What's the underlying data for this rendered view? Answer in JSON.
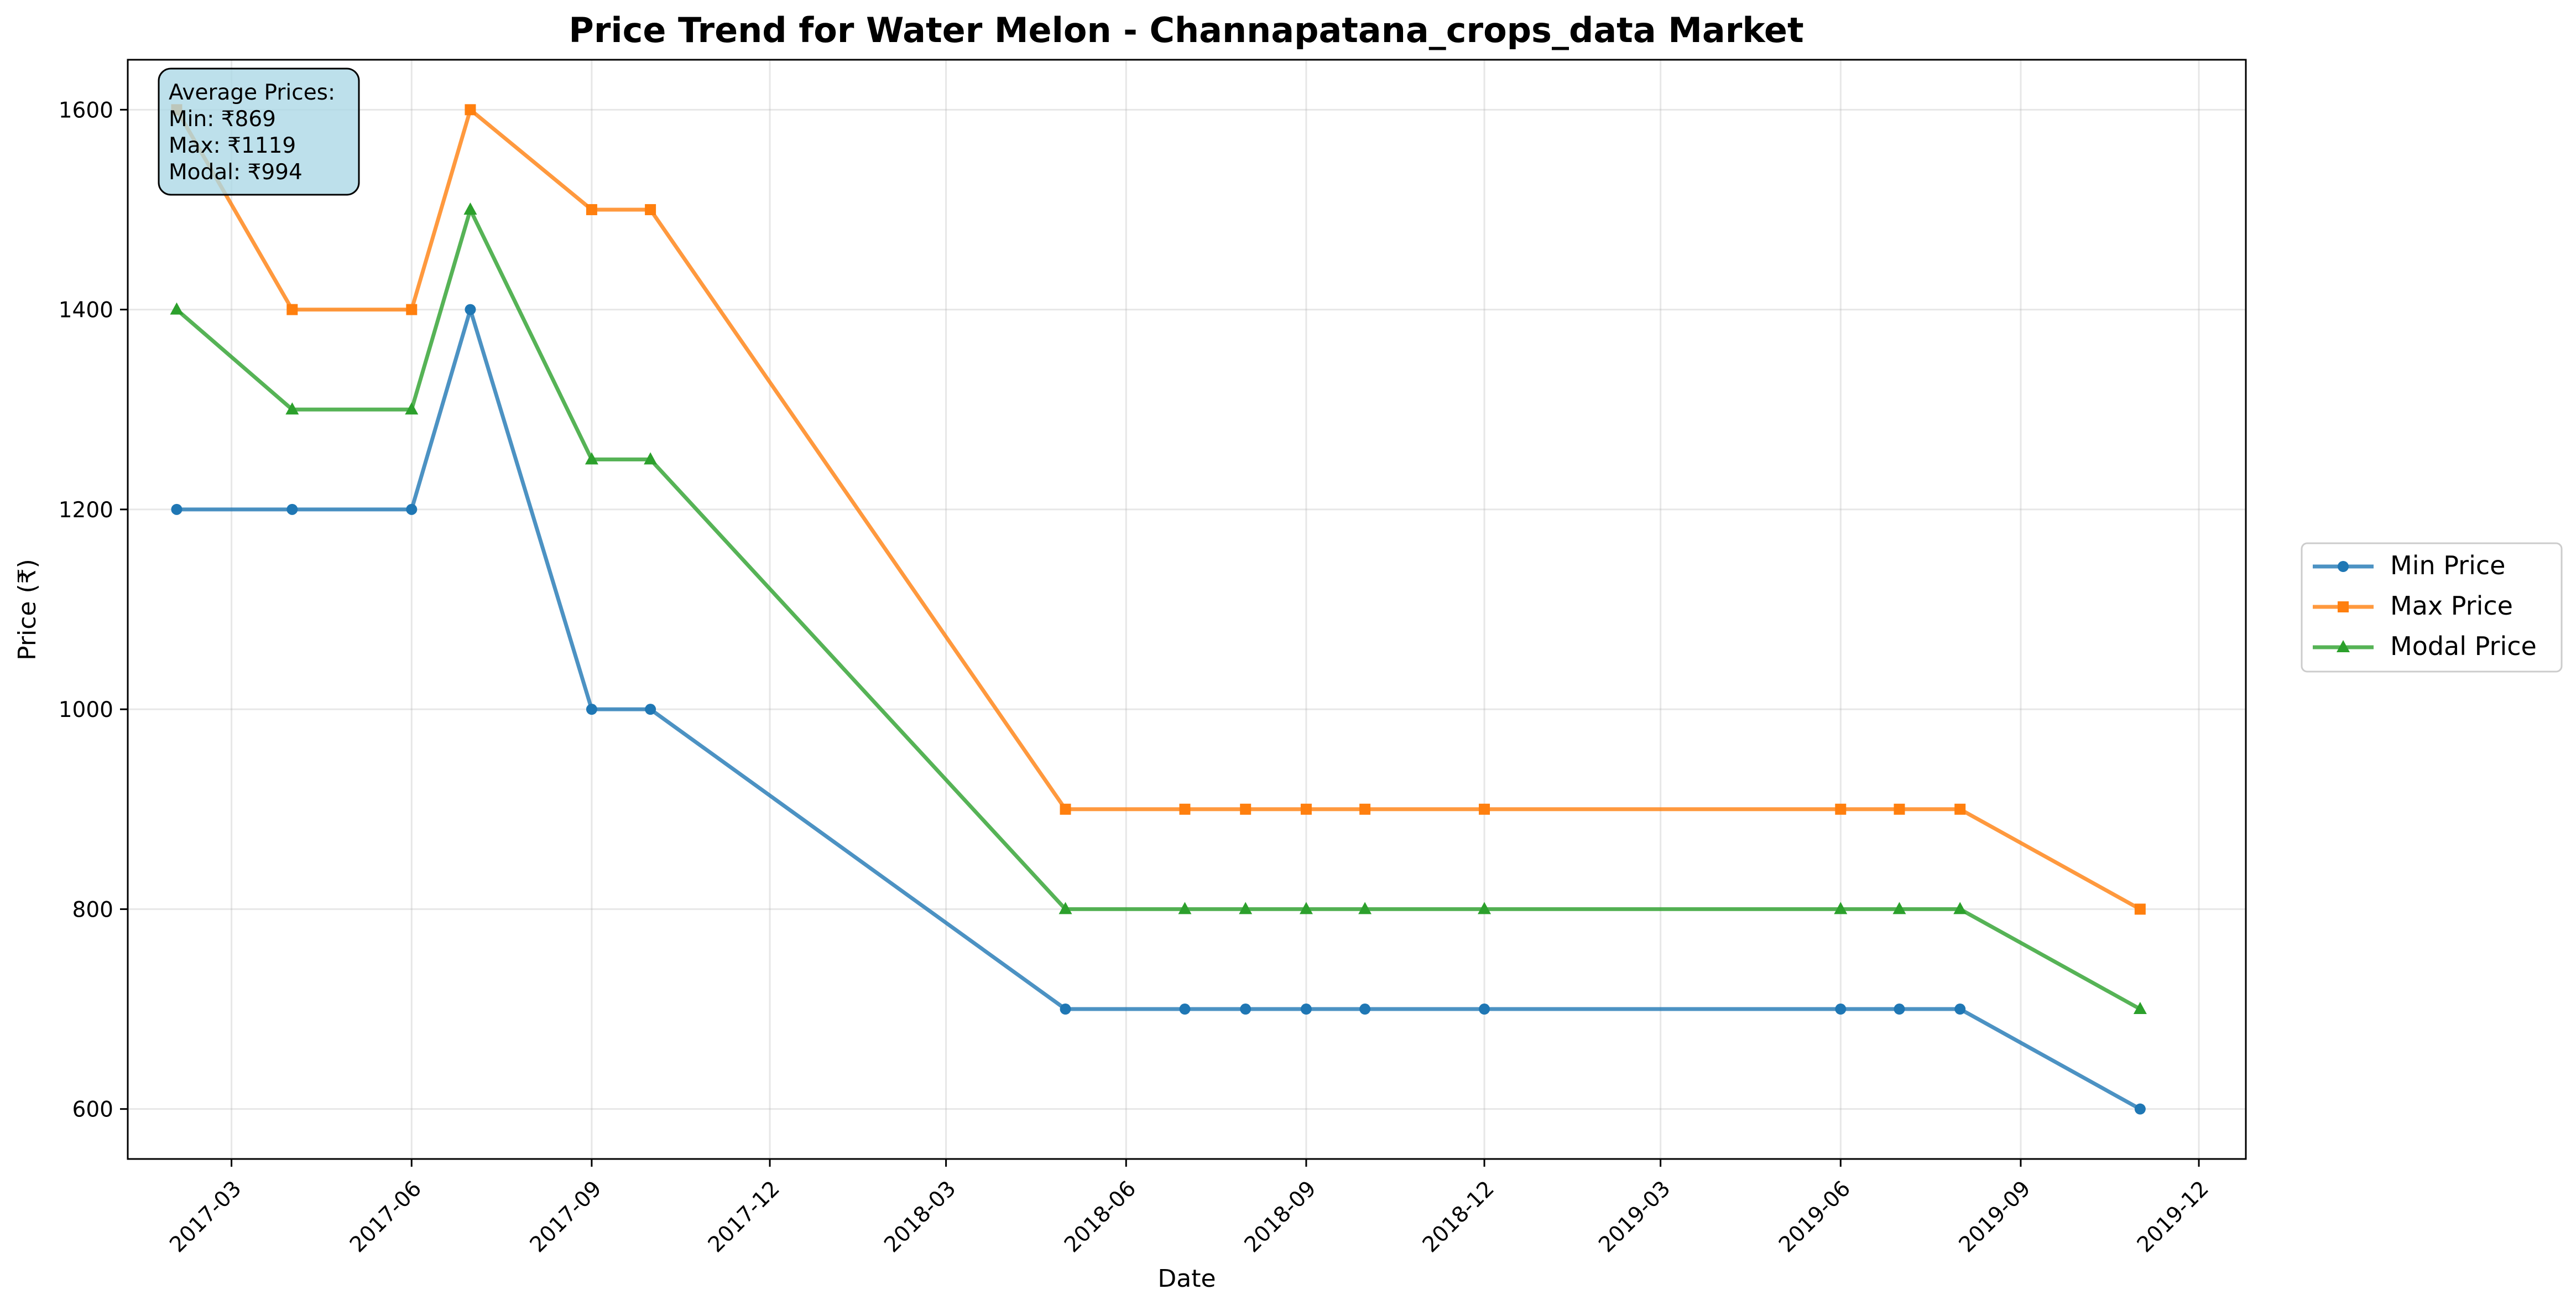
{
  "chart_data": {
    "type": "line",
    "title": "Price Trend for Water Melon - Channapatana_crops_data Market",
    "xlabel": "Date",
    "ylabel": "Price (₹)",
    "x": [
      "2017-02-01",
      "2017-04-01",
      "2017-06-01",
      "2017-07-01",
      "2017-09-01",
      "2017-10-01",
      "2018-05-01",
      "2018-07-01",
      "2018-08-01",
      "2018-09-01",
      "2018-10-01",
      "2018-12-01",
      "2019-06-01",
      "2019-07-01",
      "2019-08-01",
      "2019-11-01"
    ],
    "xlim": [
      "2017-01-07",
      "2019-12-25"
    ],
    "ylim": [
      550,
      1650
    ],
    "x_ticks": [
      "2017-03",
      "2017-06",
      "2017-09",
      "2017-12",
      "2018-03",
      "2018-06",
      "2018-09",
      "2018-12",
      "2019-03",
      "2019-06",
      "2019-09",
      "2019-12"
    ],
    "y_ticks": [
      600,
      800,
      1000,
      1200,
      1400,
      1600
    ],
    "grid": true,
    "legend_position": "right-outside",
    "series": [
      {
        "name": "Min Price",
        "color": "#1f77b4",
        "marker": "circle",
        "values": [
          1200,
          1200,
          1200,
          1400,
          1000,
          1000,
          700,
          700,
          700,
          700,
          700,
          700,
          700,
          700,
          700,
          600
        ]
      },
      {
        "name": "Max Price",
        "color": "#ff7f0e",
        "marker": "square",
        "values": [
          1600,
          1400,
          1400,
          1600,
          1500,
          1500,
          900,
          900,
          900,
          900,
          900,
          900,
          900,
          900,
          900,
          800
        ]
      },
      {
        "name": "Modal Price",
        "color": "#2ca02c",
        "marker": "triangle",
        "values": [
          1400,
          1300,
          1300,
          1500,
          1250,
          1250,
          800,
          800,
          800,
          800,
          800,
          800,
          800,
          800,
          800,
          700
        ]
      }
    ],
    "annotation": {
      "lines": [
        "Average Prices:",
        "Min: ₹869",
        "Max: ₹1119",
        "Modal: ₹994"
      ],
      "box_color": "#add8e6",
      "position": "top-left"
    }
  }
}
